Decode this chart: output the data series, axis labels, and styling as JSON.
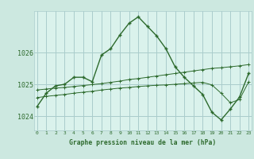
{
  "title": "Graphe pression niveau de la mer (hPa)",
  "background_color": "#cce8e0",
  "plot_bg_color": "#daf2ec",
  "grid_color": "#aacccc",
  "line_color": "#2d6a2d",
  "x_ticks": [
    0,
    1,
    2,
    3,
    4,
    5,
    6,
    7,
    8,
    9,
    10,
    11,
    12,
    13,
    14,
    15,
    16,
    17,
    18,
    19,
    20,
    21,
    22,
    23
  ],
  "y_ticks": [
    1024,
    1025,
    1026
  ],
  "ylim": [
    1023.55,
    1027.3
  ],
  "xlim": [
    -0.3,
    23.3
  ],
  "series1": [
    1024.3,
    1024.72,
    1024.95,
    1025.0,
    1025.22,
    1025.22,
    1025.08,
    1025.92,
    1026.12,
    1026.55,
    1026.92,
    1027.12,
    1026.82,
    1026.52,
    1026.12,
    1025.55,
    1025.22,
    1024.95,
    1024.68,
    1024.12,
    1023.88,
    1024.22,
    1024.6,
    1025.35
  ],
  "series2": [
    1024.82,
    1024.85,
    1024.88,
    1024.9,
    1024.93,
    1024.96,
    1024.99,
    1025.02,
    1025.06,
    1025.1,
    1025.15,
    1025.18,
    1025.22,
    1025.26,
    1025.3,
    1025.34,
    1025.38,
    1025.42,
    1025.46,
    1025.5,
    1025.52,
    1025.55,
    1025.58,
    1025.62
  ],
  "series3": [
    1024.58,
    1024.62,
    1024.65,
    1024.68,
    1024.72,
    1024.75,
    1024.78,
    1024.82,
    1024.85,
    1024.88,
    1024.9,
    1024.93,
    1024.95,
    1024.97,
    1024.98,
    1025.0,
    1025.02,
    1025.04,
    1025.06,
    1024.98,
    1024.72,
    1024.42,
    1024.52,
    1025.08
  ]
}
